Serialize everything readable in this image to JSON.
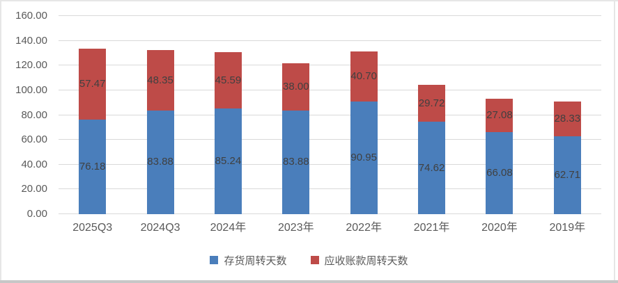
{
  "chart_data": {
    "type": "bar",
    "stacked": true,
    "title": "",
    "xlabel": "",
    "ylabel": "",
    "ylim": [
      0,
      160
    ],
    "grid": true,
    "legend_position": "bottom",
    "categories": [
      "2025Q3",
      "2024Q3",
      "2024年",
      "2023年",
      "2022年",
      "2021年",
      "2020年",
      "2019年"
    ],
    "series": [
      {
        "name": "存货周转天数",
        "color": "#4A7EBB",
        "values": [
          76.18,
          83.88,
          85.24,
          83.88,
          90.95,
          74.62,
          66.08,
          62.71
        ],
        "labels": [
          "76.18",
          "83.88",
          "85.24",
          "83.88",
          "90.95",
          "74.62",
          "66.08",
          "62.71"
        ]
      },
      {
        "name": "应收账款周转天数",
        "color": "#BE4B48",
        "values": [
          57.47,
          48.35,
          45.59,
          38.0,
          40.7,
          29.72,
          27.08,
          28.33
        ],
        "labels": [
          "57.47",
          "48.35",
          "45.59",
          "38.00",
          "40.70",
          "29.72",
          "27.08",
          "28.33"
        ]
      }
    ],
    "yticks": [
      {
        "value": 0,
        "label": "0.00"
      },
      {
        "value": 20,
        "label": "20.00"
      },
      {
        "value": 40,
        "label": "40.00"
      },
      {
        "value": 60,
        "label": "60.00"
      },
      {
        "value": 80,
        "label": "80.00"
      },
      {
        "value": 100,
        "label": "100.00"
      },
      {
        "value": 120,
        "label": "120.00"
      },
      {
        "value": 140,
        "label": "140.00"
      },
      {
        "value": 160,
        "label": "160.00"
      }
    ],
    "colors": {
      "gridline": "#d9d9d9",
      "axis_text": "#595959",
      "value_text": "#404040",
      "frame_edge": "#e6e6e6",
      "frame_bottom": "#c7c7c7"
    }
  }
}
